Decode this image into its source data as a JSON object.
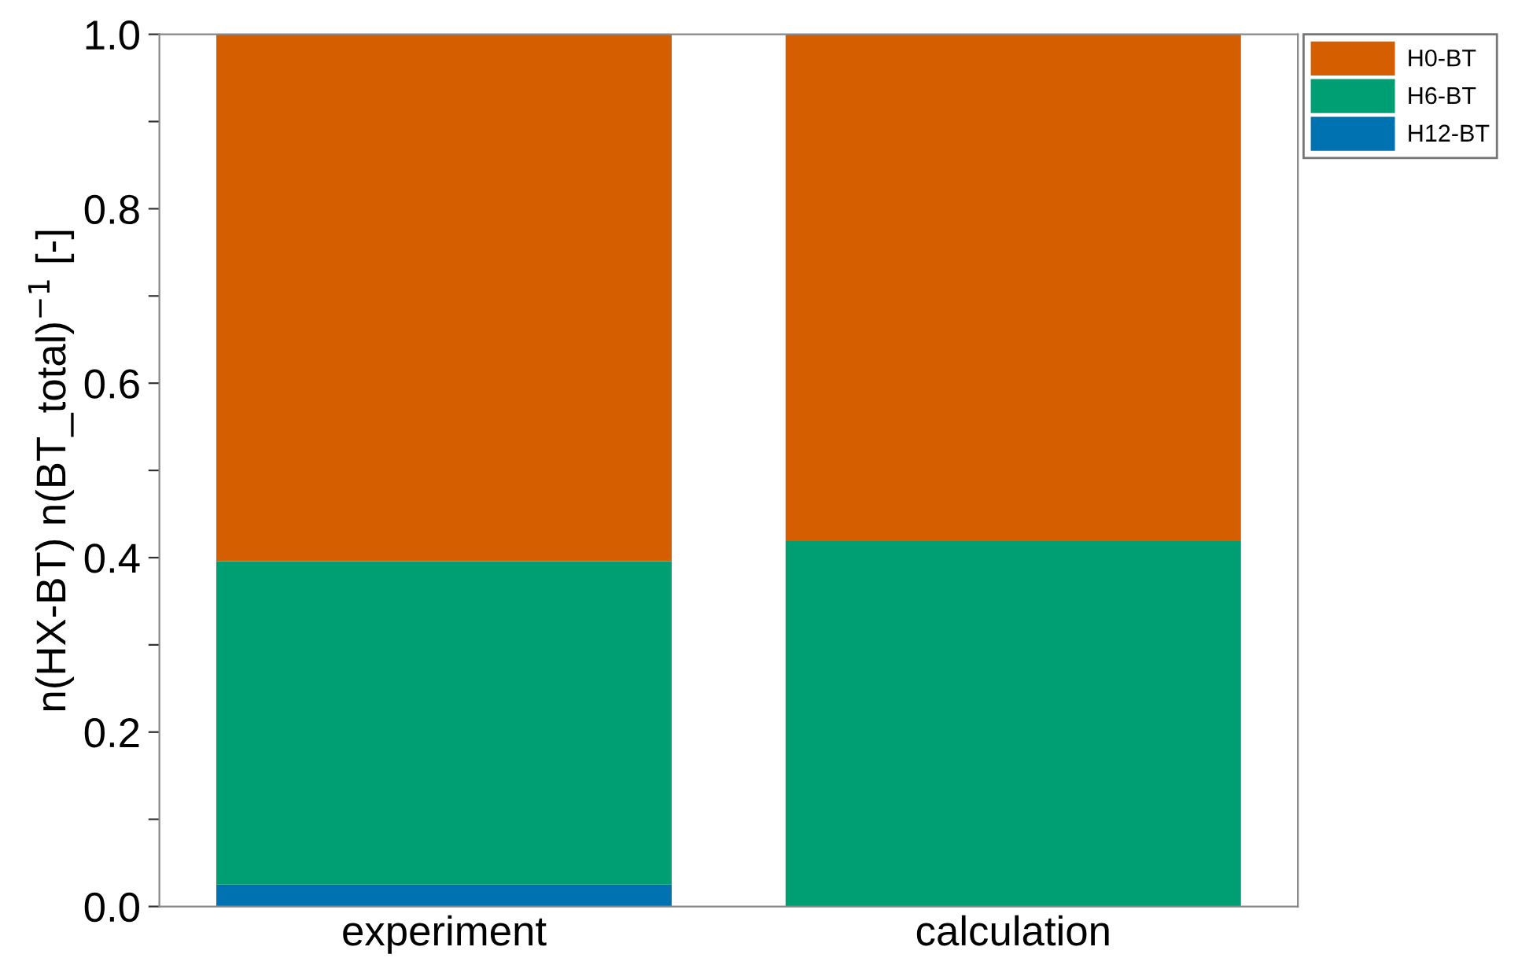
{
  "chart_data": {
    "type": "bar",
    "stacked": true,
    "ylabel": "n(HX-BT) n(BT_total)$^{−1}$ [-]",
    "categories": [
      "experiment",
      "calculation"
    ],
    "series": [
      {
        "name": "H12-BT",
        "color": "#0072b2",
        "values": [
          0.025,
          0
        ]
      },
      {
        "name": "H6-BT",
        "color": "#009e73",
        "values": [
          0.371,
          0.419
        ]
      },
      {
        "name": "H0-BT",
        "color": "#d55e00",
        "values": [
          0.604,
          0.581
        ]
      }
    ],
    "ylim": [
      0,
      1.0
    ],
    "yticks": [
      {
        "value": 0,
        "label": "0.0"
      },
      {
        "value": 0.1,
        "label": null
      },
      {
        "value": 0.2,
        "label": "0.2"
      },
      {
        "value": 0.3,
        "label": null
      },
      {
        "value": 0.4,
        "label": "0.4"
      },
      {
        "value": 0.5,
        "label": null
      },
      {
        "value": 0.6,
        "label": "0.6"
      },
      {
        "value": 0.7,
        "label": null
      },
      {
        "value": 0.8,
        "label": "0.8"
      },
      {
        "value": 0.9,
        "label": null
      },
      {
        "value": 1.0,
        "label": "1.0"
      }
    ],
    "grid": false,
    "legend": "top right"
  }
}
